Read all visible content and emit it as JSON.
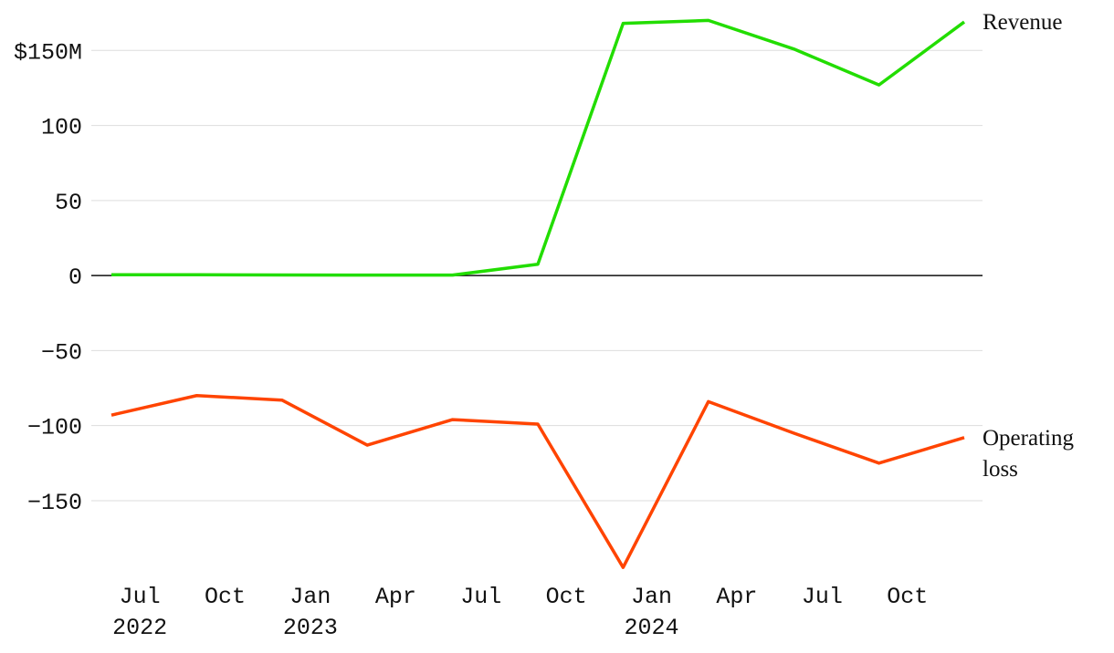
{
  "chart_data": {
    "type": "line",
    "x": [
      "2022-06",
      "2022-09",
      "2022-12",
      "2023-03",
      "2023-06",
      "2023-09",
      "2023-12",
      "2024-03",
      "2024-06",
      "2024-09",
      "2024-12"
    ],
    "xlim": [
      "2022-06",
      "2024-12"
    ],
    "xticks": [
      {
        "value": "2022-07",
        "label": "Jul",
        "year": "2022"
      },
      {
        "value": "2022-10",
        "label": "Oct"
      },
      {
        "value": "2023-01",
        "label": "Jan",
        "year": "2023"
      },
      {
        "value": "2023-04",
        "label": "Apr"
      },
      {
        "value": "2023-07",
        "label": "Jul"
      },
      {
        "value": "2023-10",
        "label": "Oct"
      },
      {
        "value": "2024-01",
        "label": "Jan",
        "year": "2024"
      },
      {
        "value": "2024-04",
        "label": "Apr"
      },
      {
        "value": "2024-07",
        "label": "Jul"
      },
      {
        "value": "2024-10",
        "label": "Oct"
      }
    ],
    "ylim": [
      -195,
      183
    ],
    "yticks": [
      {
        "value": 150,
        "label": "$150M"
      },
      100,
      50,
      0,
      {
        "value": -50,
        "label": "−50"
      },
      {
        "value": -100,
        "label": "−100"
      },
      {
        "value": -150,
        "label": "−150"
      }
    ],
    "grid": true,
    "series": [
      {
        "name": "Revenue",
        "color": "#22dd00",
        "values": [
          0.5,
          0.5,
          0.4,
          0.3,
          0.3,
          7.5,
          168,
          170,
          151,
          127,
          169
        ]
      },
      {
        "name": "Operating loss",
        "color": "#ff4400",
        "values": [
          -93,
          -80,
          -83,
          -113,
          -96,
          -99,
          -194.5,
          -84,
          -105,
          -125,
          -108
        ]
      }
    ]
  }
}
